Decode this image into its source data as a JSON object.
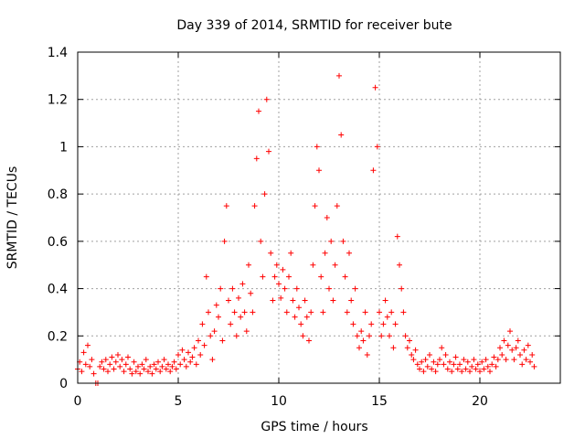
{
  "chart_data": {
    "type": "scatter",
    "title": "Day 339 of 2014, SRMTID for receiver bute",
    "xlabel": "GPS time / hours",
    "ylabel": "SRMTID / TECUs",
    "xlim": [
      0,
      24
    ],
    "ylim": [
      0,
      1.4
    ],
    "xticks": [
      0,
      5,
      10,
      15,
      20
    ],
    "xtick_labels": [
      "0",
      "5",
      "10",
      "15",
      "20"
    ],
    "yticks": [
      0,
      0.2,
      0.4,
      0.6,
      0.8,
      1,
      1.2,
      1.4
    ],
    "ytick_labels": [
      "0",
      "0.2",
      "0.4",
      "0.6",
      "0.8",
      "1",
      "1.2",
      "1.4"
    ],
    "grid": true,
    "marker": "plus",
    "series": [
      {
        "name": "bute",
        "color": "#ff0000",
        "points": [
          [
            0.0,
            0.06
          ],
          [
            0.1,
            0.09
          ],
          [
            0.2,
            0.05
          ],
          [
            0.3,
            0.13
          ],
          [
            0.4,
            0.08
          ],
          [
            0.5,
            0.16
          ],
          [
            0.6,
            0.07
          ],
          [
            0.7,
            0.1
          ],
          [
            0.8,
            0.04
          ],
          [
            0.9,
            0.0
          ],
          [
            1.0,
            0.0
          ],
          [
            1.1,
            0.07
          ],
          [
            1.2,
            0.09
          ],
          [
            1.3,
            0.06
          ],
          [
            1.4,
            0.1
          ],
          [
            1.5,
            0.05
          ],
          [
            1.6,
            0.08
          ],
          [
            1.7,
            0.11
          ],
          [
            1.8,
            0.06
          ],
          [
            1.9,
            0.09
          ],
          [
            2.0,
            0.12
          ],
          [
            2.1,
            0.07
          ],
          [
            2.2,
            0.1
          ],
          [
            2.3,
            0.05
          ],
          [
            2.4,
            0.08
          ],
          [
            2.5,
            0.11
          ],
          [
            2.6,
            0.06
          ],
          [
            2.7,
            0.04
          ],
          [
            2.8,
            0.09
          ],
          [
            2.9,
            0.05
          ],
          [
            3.0,
            0.07
          ],
          [
            3.1,
            0.04
          ],
          [
            3.2,
            0.08
          ],
          [
            3.3,
            0.06
          ],
          [
            3.4,
            0.1
          ],
          [
            3.5,
            0.05
          ],
          [
            3.6,
            0.07
          ],
          [
            3.7,
            0.04
          ],
          [
            3.8,
            0.08
          ],
          [
            3.9,
            0.06
          ],
          [
            4.0,
            0.09
          ],
          [
            4.1,
            0.05
          ],
          [
            4.2,
            0.07
          ],
          [
            4.3,
            0.1
          ],
          [
            4.4,
            0.06
          ],
          [
            4.5,
            0.08
          ],
          [
            4.6,
            0.05
          ],
          [
            4.7,
            0.07
          ],
          [
            4.8,
            0.09
          ],
          [
            4.9,
            0.06
          ],
          [
            5.0,
            0.12
          ],
          [
            5.1,
            0.08
          ],
          [
            5.2,
            0.14
          ],
          [
            5.3,
            0.1
          ],
          [
            5.4,
            0.07
          ],
          [
            5.5,
            0.13
          ],
          [
            5.6,
            0.09
          ],
          [
            5.7,
            0.11
          ],
          [
            5.8,
            0.15
          ],
          [
            5.9,
            0.08
          ],
          [
            6.0,
            0.18
          ],
          [
            6.1,
            0.12
          ],
          [
            6.2,
            0.25
          ],
          [
            6.3,
            0.16
          ],
          [
            6.4,
            0.45
          ],
          [
            6.5,
            0.3
          ],
          [
            6.6,
            0.2
          ],
          [
            6.7,
            0.1
          ],
          [
            6.8,
            0.22
          ],
          [
            6.9,
            0.33
          ],
          [
            7.0,
            0.28
          ],
          [
            7.1,
            0.4
          ],
          [
            7.2,
            0.18
          ],
          [
            7.3,
            0.6
          ],
          [
            7.4,
            0.75
          ],
          [
            7.5,
            0.35
          ],
          [
            7.6,
            0.25
          ],
          [
            7.7,
            0.4
          ],
          [
            7.8,
            0.3
          ],
          [
            7.9,
            0.2
          ],
          [
            8.0,
            0.36
          ],
          [
            8.1,
            0.28
          ],
          [
            8.2,
            0.42
          ],
          [
            8.3,
            0.3
          ],
          [
            8.4,
            0.22
          ],
          [
            8.5,
            0.5
          ],
          [
            8.6,
            0.38
          ],
          [
            8.7,
            0.3
          ],
          [
            8.8,
            0.75
          ],
          [
            8.9,
            0.95
          ],
          [
            9.0,
            1.15
          ],
          [
            9.1,
            0.6
          ],
          [
            9.2,
            0.45
          ],
          [
            9.3,
            0.8
          ],
          [
            9.4,
            1.2
          ],
          [
            9.5,
            0.98
          ],
          [
            9.6,
            0.55
          ],
          [
            9.7,
            0.35
          ],
          [
            9.8,
            0.45
          ],
          [
            9.9,
            0.5
          ],
          [
            10.0,
            0.42
          ],
          [
            10.1,
            0.36
          ],
          [
            10.2,
            0.48
          ],
          [
            10.3,
            0.4
          ],
          [
            10.4,
            0.3
          ],
          [
            10.5,
            0.45
          ],
          [
            10.6,
            0.55
          ],
          [
            10.7,
            0.35
          ],
          [
            10.8,
            0.28
          ],
          [
            10.9,
            0.4
          ],
          [
            11.0,
            0.32
          ],
          [
            11.1,
            0.25
          ],
          [
            11.2,
            0.2
          ],
          [
            11.3,
            0.35
          ],
          [
            11.4,
            0.28
          ],
          [
            11.5,
            0.18
          ],
          [
            11.6,
            0.3
          ],
          [
            11.7,
            0.5
          ],
          [
            11.8,
            0.75
          ],
          [
            11.9,
            1.0
          ],
          [
            12.0,
            0.9
          ],
          [
            12.1,
            0.45
          ],
          [
            12.2,
            0.3
          ],
          [
            12.3,
            0.55
          ],
          [
            12.4,
            0.7
          ],
          [
            12.5,
            0.4
          ],
          [
            12.6,
            0.6
          ],
          [
            12.7,
            0.35
          ],
          [
            12.8,
            0.5
          ],
          [
            12.9,
            0.75
          ],
          [
            13.0,
            1.3
          ],
          [
            13.1,
            1.05
          ],
          [
            13.2,
            0.6
          ],
          [
            13.3,
            0.45
          ],
          [
            13.4,
            0.3
          ],
          [
            13.5,
            0.55
          ],
          [
            13.6,
            0.35
          ],
          [
            13.7,
            0.25
          ],
          [
            13.8,
            0.4
          ],
          [
            13.9,
            0.2
          ],
          [
            14.0,
            0.15
          ],
          [
            14.1,
            0.22
          ],
          [
            14.2,
            0.18
          ],
          [
            14.3,
            0.3
          ],
          [
            14.4,
            0.12
          ],
          [
            14.5,
            0.2
          ],
          [
            14.6,
            0.25
          ],
          [
            14.7,
            0.9
          ],
          [
            14.8,
            1.25
          ],
          [
            14.9,
            1.0
          ],
          [
            15.0,
            0.3
          ],
          [
            15.1,
            0.2
          ],
          [
            15.2,
            0.25
          ],
          [
            15.3,
            0.35
          ],
          [
            15.4,
            0.28
          ],
          [
            15.5,
            0.2
          ],
          [
            15.6,
            0.3
          ],
          [
            15.7,
            0.15
          ],
          [
            15.8,
            0.25
          ],
          [
            15.9,
            0.62
          ],
          [
            16.0,
            0.5
          ],
          [
            16.1,
            0.4
          ],
          [
            16.2,
            0.3
          ],
          [
            16.3,
            0.2
          ],
          [
            16.4,
            0.15
          ],
          [
            16.5,
            0.18
          ],
          [
            16.6,
            0.12
          ],
          [
            16.7,
            0.1
          ],
          [
            16.8,
            0.14
          ],
          [
            16.9,
            0.08
          ],
          [
            17.0,
            0.06
          ],
          [
            17.1,
            0.09
          ],
          [
            17.2,
            0.05
          ],
          [
            17.3,
            0.1
          ],
          [
            17.4,
            0.07
          ],
          [
            17.5,
            0.12
          ],
          [
            17.6,
            0.06
          ],
          [
            17.7,
            0.09
          ],
          [
            17.8,
            0.05
          ],
          [
            17.9,
            0.08
          ],
          [
            18.0,
            0.1
          ],
          [
            18.1,
            0.15
          ],
          [
            18.2,
            0.08
          ],
          [
            18.3,
            0.12
          ],
          [
            18.4,
            0.06
          ],
          [
            18.5,
            0.09
          ],
          [
            18.6,
            0.05
          ],
          [
            18.7,
            0.08
          ],
          [
            18.8,
            0.11
          ],
          [
            18.9,
            0.06
          ],
          [
            19.0,
            0.08
          ],
          [
            19.1,
            0.05
          ],
          [
            19.2,
            0.1
          ],
          [
            19.3,
            0.06
          ],
          [
            19.4,
            0.09
          ],
          [
            19.5,
            0.05
          ],
          [
            19.6,
            0.07
          ],
          [
            19.7,
            0.1
          ],
          [
            19.8,
            0.06
          ],
          [
            19.9,
            0.08
          ],
          [
            20.0,
            0.05
          ],
          [
            20.1,
            0.09
          ],
          [
            20.2,
            0.06
          ],
          [
            20.3,
            0.1
          ],
          [
            20.4,
            0.07
          ],
          [
            20.5,
            0.05
          ],
          [
            20.6,
            0.08
          ],
          [
            20.7,
            0.11
          ],
          [
            20.8,
            0.07
          ],
          [
            20.9,
            0.1
          ],
          [
            21.0,
            0.15
          ],
          [
            21.1,
            0.12
          ],
          [
            21.2,
            0.18
          ],
          [
            21.3,
            0.1
          ],
          [
            21.4,
            0.16
          ],
          [
            21.5,
            0.22
          ],
          [
            21.6,
            0.14
          ],
          [
            21.7,
            0.1
          ],
          [
            21.8,
            0.15
          ],
          [
            21.9,
            0.18
          ],
          [
            22.0,
            0.12
          ],
          [
            22.1,
            0.08
          ],
          [
            22.2,
            0.14
          ],
          [
            22.3,
            0.1
          ],
          [
            22.4,
            0.16
          ],
          [
            22.5,
            0.09
          ],
          [
            22.6,
            0.12
          ],
          [
            22.7,
            0.07
          ]
        ]
      }
    ]
  }
}
